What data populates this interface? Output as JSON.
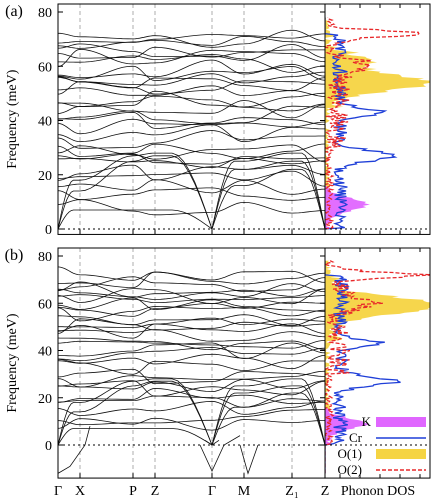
{
  "chart_data": [
    {
      "type": "line",
      "panel_label": "(a)",
      "ylabel": "Frequency (meV)",
      "ylim": [
        -2,
        80
      ],
      "yticks": [
        0,
        20,
        40,
        60,
        80
      ],
      "xticks": [
        "Γ",
        "X",
        "P",
        "Z",
        "Γ",
        "M",
        "Z₁",
        "Z"
      ],
      "dos_xlabel": "Phonon DOS",
      "dos_series": [
        {
          "name": "K",
          "color": "#e066ff",
          "style": "fill"
        },
        {
          "name": "Cr",
          "color": "#1f3fd8",
          "style": "line"
        },
        {
          "name": "O(1)",
          "color": "#f5d442",
          "style": "fill"
        },
        {
          "name": "O(2)",
          "color": "#e8282a",
          "style": "dashed"
        }
      ]
    },
    {
      "type": "line",
      "panel_label": "(b)",
      "ylabel": "Frequency (meV)",
      "ylim": [
        -14,
        80
      ],
      "yticks": [
        0,
        20,
        40,
        60,
        80
      ],
      "xticks": [
        "Γ",
        "X",
        "P",
        "Z",
        "Γ",
        "M",
        "Z₁",
        "Z"
      ],
      "dos_xlabel": "Phonon DOS",
      "dos_series": [
        {
          "name": "K",
          "color": "#e066ff",
          "style": "fill"
        },
        {
          "name": "Cr",
          "color": "#1f3fd8",
          "style": "line"
        },
        {
          "name": "O(1)",
          "color": "#f5d442",
          "style": "fill"
        },
        {
          "name": "O(2)",
          "color": "#e8282a",
          "style": "dashed"
        }
      ]
    }
  ]
}
